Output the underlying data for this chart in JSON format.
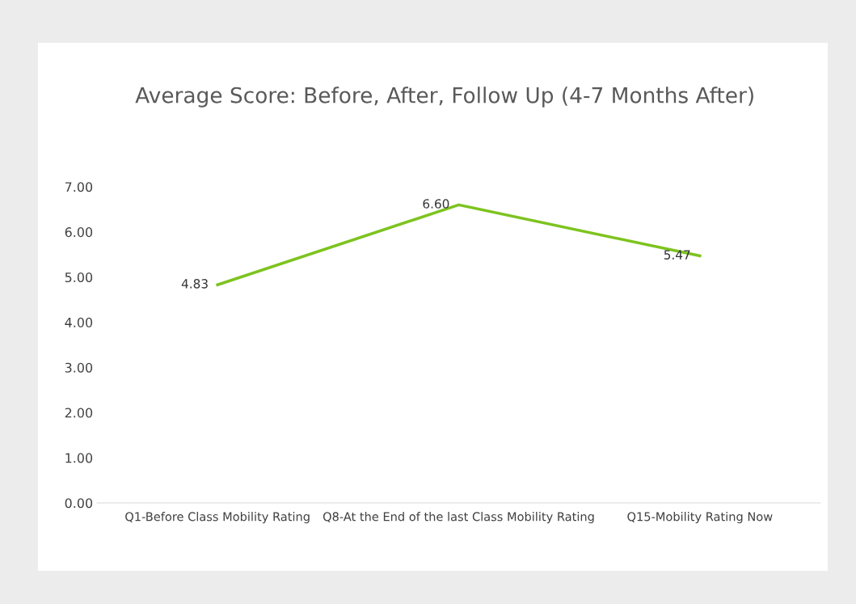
{
  "chart_data": {
    "type": "line",
    "title": "Average Score: Before, After, Follow Up (4-7 Months After)",
    "categories": [
      "Q1-Before Class Mobility Rating",
      "Q8-At the End of the last Class Mobility Rating",
      "Q15-Mobility Rating Now"
    ],
    "series": [
      {
        "color": "#7dc31f",
        "values": [
          4.83,
          6.6,
          5.47
        ],
        "value_labels": [
          "4.83",
          "6.60",
          "5.47"
        ]
      }
    ],
    "ylim": [
      0,
      7
    ],
    "yticks": [
      {
        "value": 0,
        "label": "0.00"
      },
      {
        "value": 1,
        "label": "1.00"
      },
      {
        "value": 2,
        "label": "2.00"
      },
      {
        "value": 3,
        "label": "3.00"
      },
      {
        "value": 4,
        "label": "4.00"
      },
      {
        "value": 5,
        "label": "5.00"
      },
      {
        "value": 6,
        "label": "6.00"
      },
      {
        "value": 7,
        "label": "7.00"
      }
    ],
    "grid": false,
    "marker": "none",
    "line_style": "solid"
  }
}
